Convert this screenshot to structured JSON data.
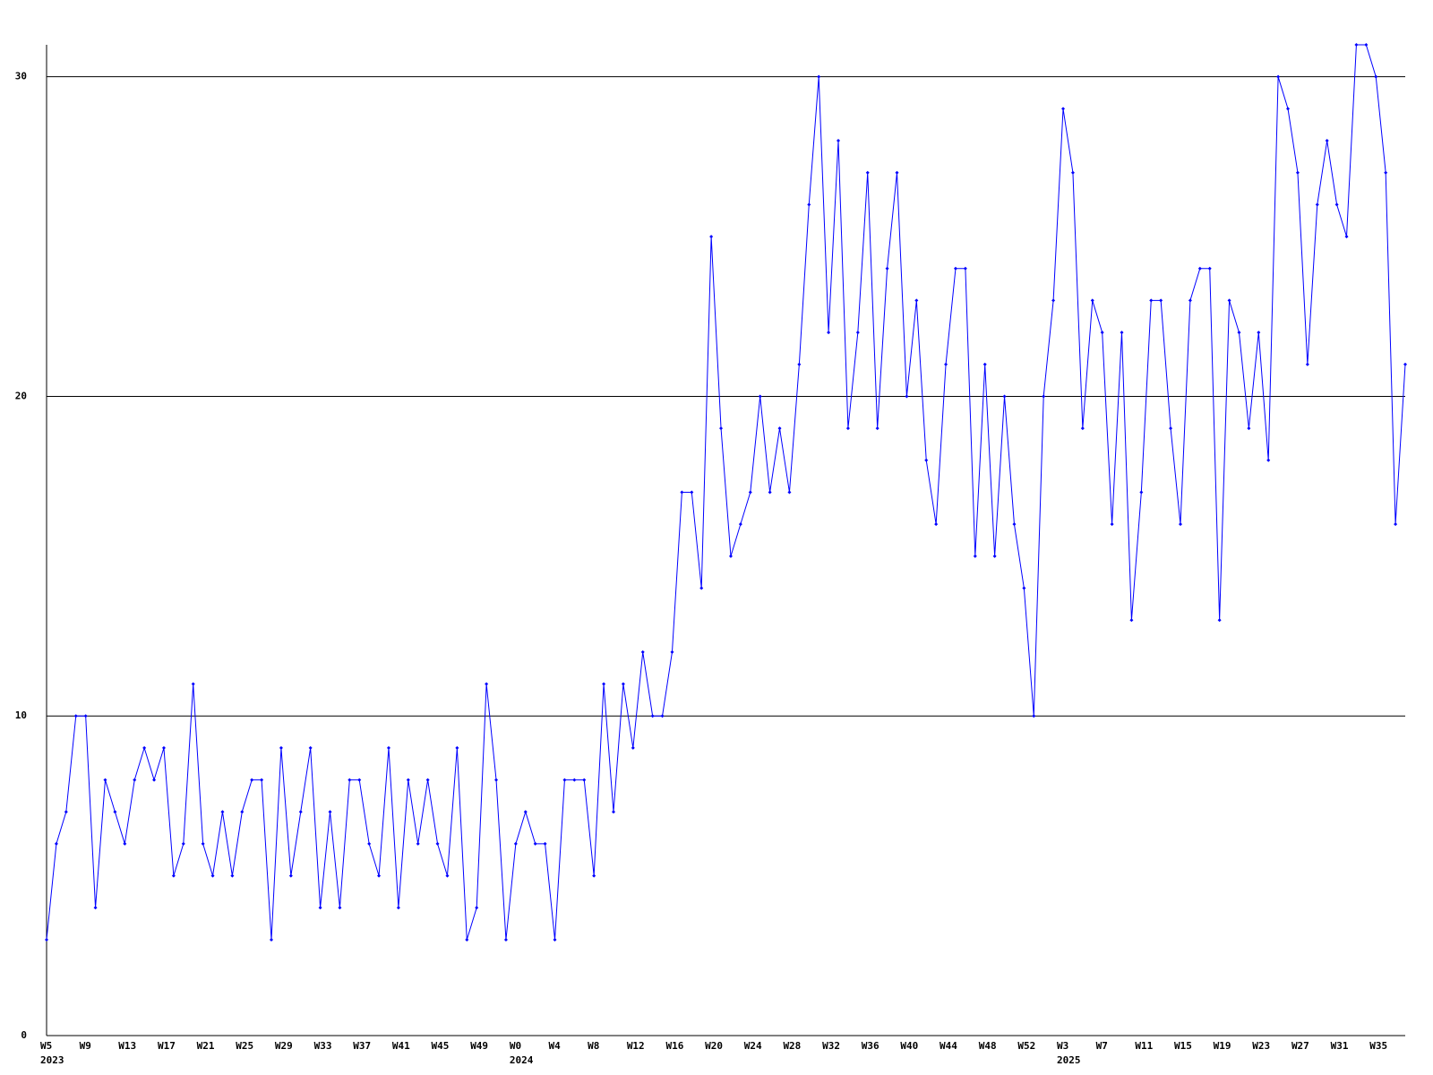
{
  "chart_data": {
    "type": "line",
    "categories": [
      "W5",
      null,
      null,
      null,
      "W9",
      null,
      null,
      null,
      "W13",
      null,
      null,
      null,
      "W17",
      null,
      null,
      null,
      "W21",
      null,
      null,
      null,
      "W25",
      null,
      null,
      null,
      "W29",
      null,
      null,
      null,
      "W33",
      null,
      null,
      null,
      "W37",
      null,
      null,
      null,
      "W41",
      null,
      null,
      null,
      "W45",
      null,
      null,
      null,
      "W49",
      null,
      null,
      null,
      "W0",
      null,
      null,
      null,
      "W4",
      null,
      null,
      null,
      "W8",
      null,
      null,
      null,
      "W12",
      null,
      null,
      null,
      "W16",
      null,
      null,
      null,
      "W20",
      null,
      null,
      null,
      "W24",
      null,
      null,
      null,
      "W28",
      null,
      null,
      null,
      "W32",
      null,
      null,
      null,
      "W36",
      null,
      null,
      null,
      "W40",
      null,
      null,
      null,
      "W44",
      null,
      null,
      null,
      "W48",
      null,
      null,
      null,
      "W52",
      null,
      null,
      null,
      "W3",
      null,
      null,
      null,
      "W7",
      null,
      null,
      null,
      "W11",
      null,
      null,
      null,
      "W15",
      null,
      null,
      null,
      "W19",
      null,
      null,
      null,
      "W23",
      null,
      null,
      null,
      "W27",
      null,
      null,
      null,
      "W31",
      null,
      null,
      null,
      "W35",
      null,
      null,
      null
    ],
    "category_groups": [
      "2023",
      null,
      null,
      null,
      null,
      null,
      null,
      null,
      null,
      null,
      null,
      null,
      null,
      null,
      null,
      null,
      null,
      null,
      null,
      null,
      null,
      null,
      null,
      null,
      null,
      null,
      null,
      null,
      null,
      null,
      null,
      null,
      null,
      null,
      null,
      null,
      null,
      null,
      null,
      null,
      null,
      null,
      null,
      null,
      null,
      null,
      null,
      null,
      "2024",
      null,
      null,
      null,
      null,
      null,
      null,
      null,
      null,
      null,
      null,
      null,
      null,
      null,
      null,
      null,
      null,
      null,
      null,
      null,
      null,
      null,
      null,
      null,
      null,
      null,
      null,
      null,
      null,
      null,
      null,
      null,
      null,
      null,
      null,
      null,
      null,
      null,
      null,
      null,
      null,
      null,
      null,
      null,
      null,
      null,
      null,
      null,
      null,
      null,
      null,
      null,
      null,
      null,
      null,
      null,
      "2025",
      null,
      null,
      null,
      null,
      null,
      null,
      null,
      null,
      null,
      null,
      null,
      null,
      null,
      null,
      null,
      null,
      null,
      null,
      null,
      null,
      null,
      null,
      null,
      null,
      null,
      null,
      null,
      null,
      null,
      null,
      null,
      null,
      null,
      null
    ],
    "series": [
      {
        "color": "#0000ff",
        "values": [
          3,
          6,
          7,
          10,
          10,
          4,
          8,
          7,
          6,
          8,
          9,
          8,
          9,
          5,
          6,
          11,
          6,
          5,
          7,
          5,
          7,
          8,
          8,
          3,
          9,
          5,
          7,
          9,
          4,
          7,
          4,
          8,
          8,
          6,
          5,
          9,
          4,
          8,
          6,
          8,
          6,
          5,
          9,
          3,
          4,
          11,
          8,
          3,
          6,
          7,
          6,
          6,
          3,
          8,
          8,
          8,
          5,
          11,
          7,
          11,
          9,
          12,
          10,
          10,
          12,
          17,
          17,
          14,
          25,
          19,
          15,
          16,
          17,
          20,
          17,
          19,
          17,
          21,
          26,
          30,
          22,
          28,
          19,
          22,
          27,
          19,
          24,
          27,
          20,
          23,
          18,
          16,
          21,
          24,
          24,
          15,
          21,
          15,
          20,
          16,
          14,
          10,
          20,
          23,
          29,
          27,
          19,
          23,
          22,
          16,
          22,
          13,
          17,
          23,
          23,
          19,
          16,
          23,
          24,
          24,
          13,
          23,
          22,
          19,
          22,
          18,
          30,
          29,
          27,
          21,
          26,
          28,
          26,
          25,
          31,
          31,
          30,
          27,
          16,
          21
        ]
      }
    ],
    "ylim": [
      0,
      31
    ],
    "yticks": [
      0,
      10,
      20,
      30
    ],
    "grid": true
  }
}
